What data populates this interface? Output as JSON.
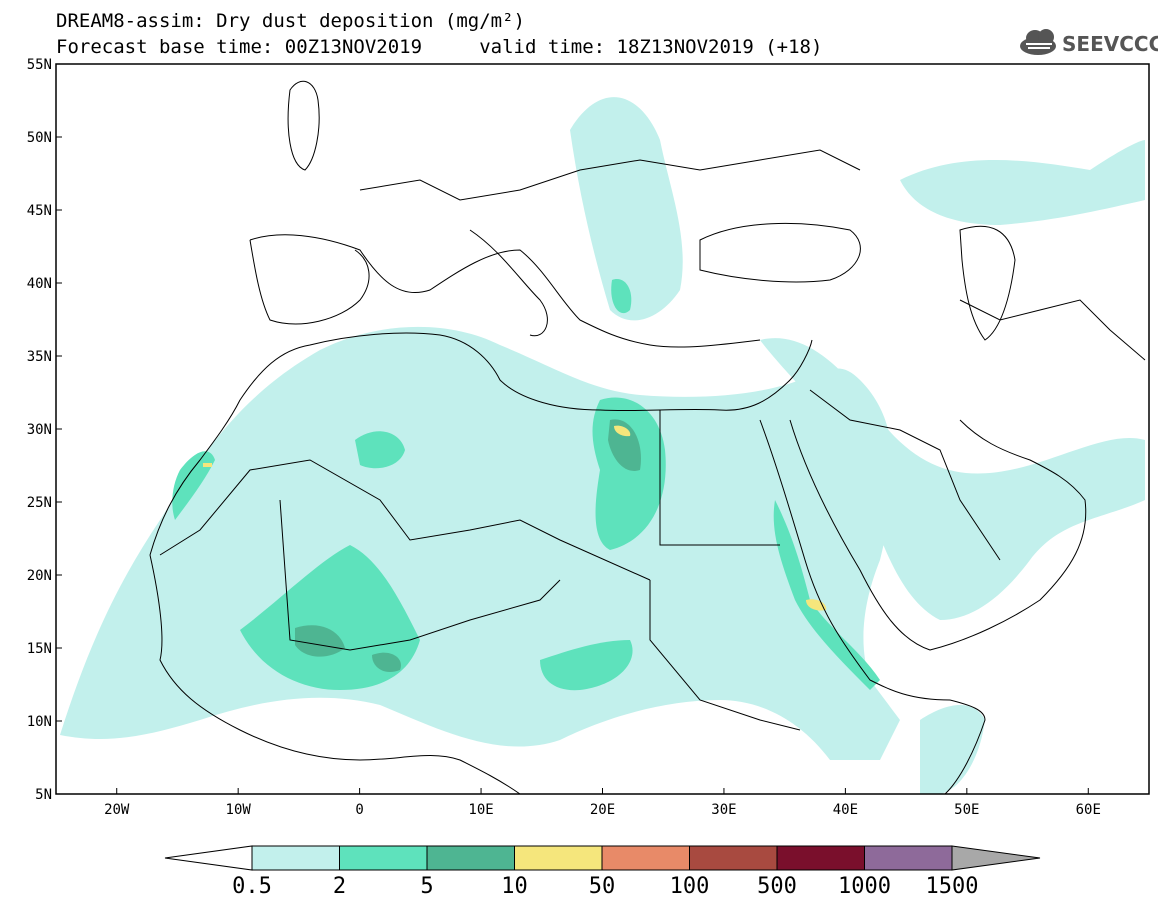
{
  "title": {
    "line1": "DREAM8-assim: Dry dust deposition (mg/m²)",
    "line2": "Forecast base time: 00Z13NOV2019     valid time: 18Z13NOV2019 (+18)"
  },
  "logo": {
    "text": "SEEVCCC",
    "icon": "cloud-icon"
  },
  "axes": {
    "lon_labels": [
      "20W",
      "10W",
      "0",
      "10E",
      "20E",
      "30E",
      "40E",
      "50E",
      "60E"
    ],
    "lat_labels": [
      "55N",
      "50N",
      "45N",
      "40N",
      "35N",
      "30N",
      "25N",
      "20N",
      "15N",
      "10N",
      "5N"
    ],
    "lon_range": [
      -25,
      65
    ],
    "lat_range": [
      5,
      55
    ]
  },
  "colorbar": {
    "levels": [
      "0.5",
      "2",
      "5",
      "10",
      "50",
      "100",
      "500",
      "1000",
      "1500"
    ],
    "colors": [
      "#c2f0ec",
      "#5ee2bc",
      "#4eb592",
      "#f5e67c",
      "#e88a68",
      "#a84a40",
      "#7a0f2c",
      "#8e6a9a"
    ],
    "over_color": "#a8a8a8",
    "under_color": "#ffffff"
  }
}
